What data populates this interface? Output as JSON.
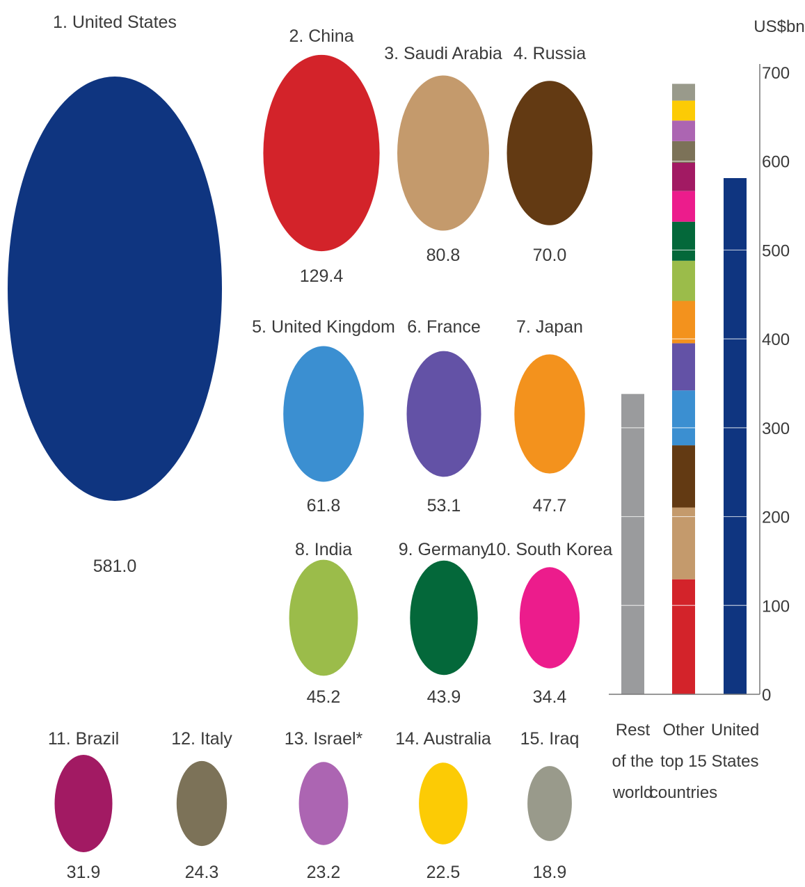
{
  "chart_data": [
    {
      "type": "bubble",
      "title": "",
      "items": [
        {
          "rank": 1,
          "label": "1. United States",
          "value": 581.0,
          "value_label": "581.0",
          "color": "#0f3580"
        },
        {
          "rank": 2,
          "label": "2. China",
          "value": 129.4,
          "value_label": "129.4",
          "color": "#d3232a"
        },
        {
          "rank": 3,
          "label": "3. Saudi Arabia",
          "value": 80.8,
          "value_label": "80.8",
          "color": "#c49a6c"
        },
        {
          "rank": 4,
          "label": "4. Russia",
          "value": 70.0,
          "value_label": "70.0",
          "color": "#633a13"
        },
        {
          "rank": 5,
          "label": "5. United Kingdom",
          "value": 61.8,
          "value_label": "61.8",
          "color": "#3b8fd1"
        },
        {
          "rank": 6,
          "label": "6. France",
          "value": 53.1,
          "value_label": "53.1",
          "color": "#6352a6"
        },
        {
          "rank": 7,
          "label": "7. Japan",
          "value": 47.7,
          "value_label": "47.7",
          "color": "#f3921d"
        },
        {
          "rank": 8,
          "label": "8. India",
          "value": 45.2,
          "value_label": "45.2",
          "color": "#9bbc4a"
        },
        {
          "rank": 9,
          "label": "9. Germany",
          "value": 43.9,
          "value_label": "43.9",
          "color": "#04683a"
        },
        {
          "rank": 10,
          "label": "10. South Korea",
          "value": 34.4,
          "value_label": "34.4",
          "color": "#ec1c8c"
        },
        {
          "rank": 11,
          "label": "11. Brazil",
          "value": 31.9,
          "value_label": "31.9",
          "color": "#a21a63"
        },
        {
          "rank": 12,
          "label": "12. Italy",
          "value": 24.3,
          "value_label": "24.3",
          "color": "#7c7258"
        },
        {
          "rank": 13,
          "label": "13. Israel*",
          "value": 23.2,
          "value_label": "23.2",
          "color": "#ac65b2"
        },
        {
          "rank": 14,
          "label": "14. Australia",
          "value": 22.5,
          "value_label": "22.5",
          "color": "#fccb05"
        },
        {
          "rank": 15,
          "label": "15. Iraq",
          "value": 18.9,
          "value_label": "18.9",
          "color": "#999a8b"
        }
      ]
    },
    {
      "type": "stacked-bar",
      "title": "",
      "ylabel": "US$bn",
      "ylim": [
        0,
        700
      ],
      "yticks": [
        0,
        100,
        200,
        300,
        400,
        500,
        600,
        700
      ],
      "categories": [
        "Rest of the world",
        "Other top 15 countries",
        "United States"
      ],
      "category_lines": [
        [
          "Rest",
          "of the",
          "world"
        ],
        [
          "Other",
          "top 15",
          "countries"
        ],
        [
          "United",
          "States"
        ]
      ],
      "bars": [
        {
          "category": "Rest of the world",
          "segments": [
            {
              "value": 338,
              "color": "#9a9b9d"
            }
          ]
        },
        {
          "category": "Other top 15 countries",
          "segments": [
            {
              "value": 129.4,
              "color": "#d3232a"
            },
            {
              "value": 80.8,
              "color": "#c49a6c"
            },
            {
              "value": 70.0,
              "color": "#633a13"
            },
            {
              "value": 61.8,
              "color": "#3b8fd1"
            },
            {
              "value": 53.1,
              "color": "#6352a6"
            },
            {
              "value": 47.7,
              "color": "#f3921d"
            },
            {
              "value": 45.2,
              "color": "#9bbc4a"
            },
            {
              "value": 43.9,
              "color": "#04683a"
            },
            {
              "value": 34.4,
              "color": "#ec1c8c"
            },
            {
              "value": 31.9,
              "color": "#a21a63"
            },
            {
              "value": 24.3,
              "color": "#7c7258"
            },
            {
              "value": 23.2,
              "color": "#ac65b2"
            },
            {
              "value": 22.5,
              "color": "#fccb05"
            },
            {
              "value": 18.9,
              "color": "#999a8b"
            }
          ]
        },
        {
          "category": "United States",
          "segments": [
            {
              "value": 581.0,
              "color": "#0f3580"
            }
          ]
        }
      ],
      "grid": true,
      "axis_position": "right"
    }
  ]
}
